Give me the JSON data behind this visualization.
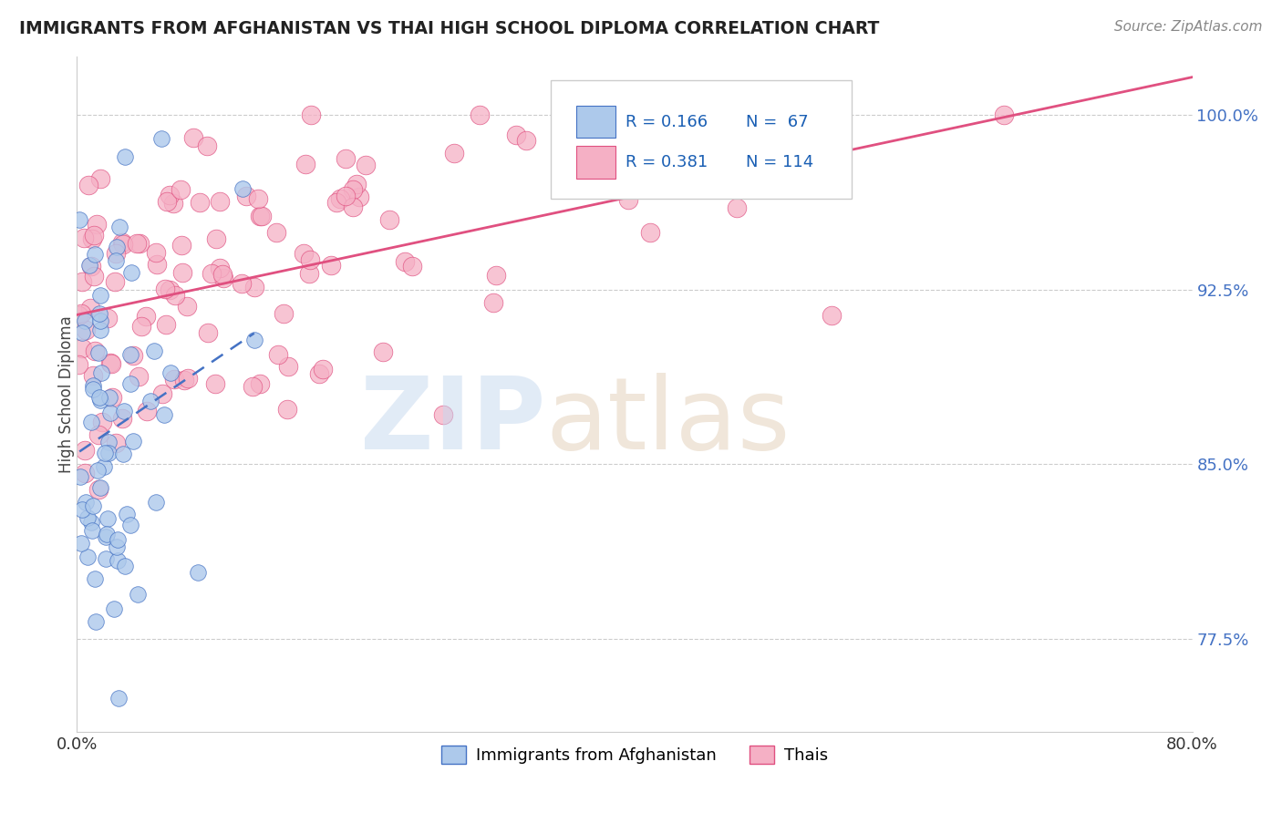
{
  "title": "IMMIGRANTS FROM AFGHANISTAN VS THAI HIGH SCHOOL DIPLOMA CORRELATION CHART",
  "source": "Source: ZipAtlas.com",
  "ylabel": "High School Diploma",
  "ytick_labels": [
    "100.0%",
    "92.5%",
    "85.0%",
    "77.5%"
  ],
  "ytick_values": [
    1.0,
    0.925,
    0.85,
    0.775
  ],
  "xmin": 0.0,
  "xmax": 0.8,
  "ymin": 0.735,
  "ymax": 1.025,
  "afghanistan_R": 0.166,
  "afghanistan_N": 67,
  "thai_R": 0.381,
  "thai_N": 114,
  "afghanistan_color": "#adc9eb",
  "thai_color": "#f5b0c5",
  "afghanistan_line_color": "#4472c4",
  "thai_line_color": "#e05080",
  "legend_label_afghanistan": "Immigrants from Afghanistan",
  "legend_label_thai": "Thais",
  "background_color": "#ffffff",
  "grid_color": "#cccccc",
  "title_color": "#222222",
  "axis_label_color": "#4472c4",
  "axis_tick_color": "#333333"
}
